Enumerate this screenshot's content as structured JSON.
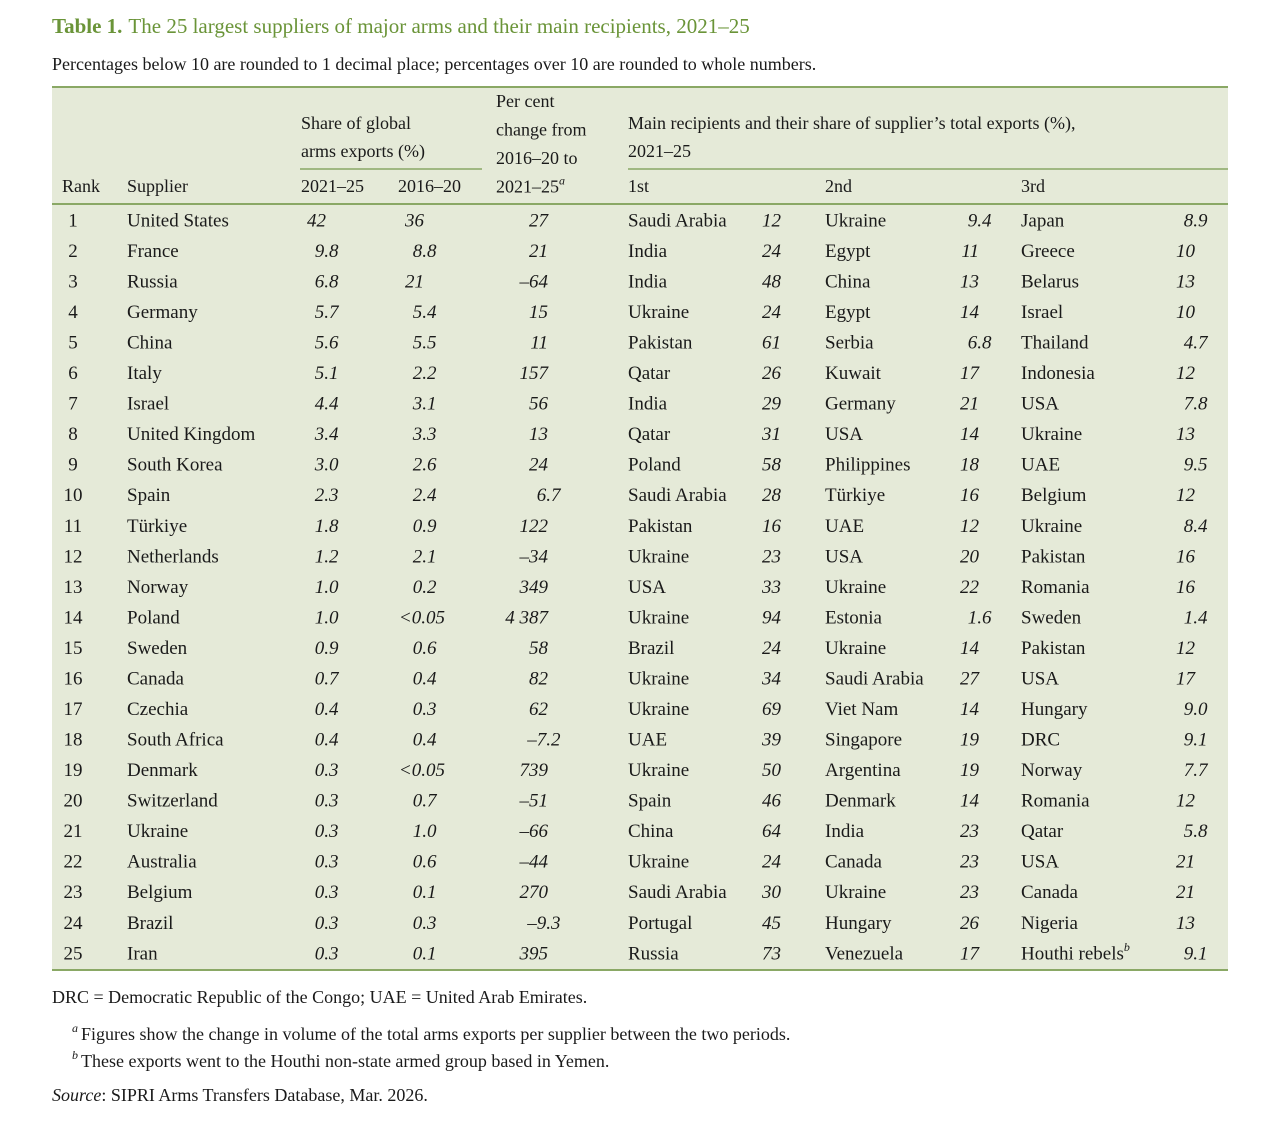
{
  "title": {
    "label": "Table 1.",
    "text": "The 25 largest suppliers of major arms and their main recipients, 2021–25"
  },
  "subtitle": "Percentages below 10 are rounded to 1 decimal place; percentages over 10 are rounded to whole numbers.",
  "header": {
    "rank": "Rank",
    "supplier": "Supplier",
    "share": {
      "lines": [
        "Share of global",
        "arms exports (%)"
      ],
      "periods": [
        "2021–25",
        "2016–20"
      ]
    },
    "change": {
      "lines": [
        "Per cent",
        "change from",
        "2016–20 to",
        "2021–25"
      ],
      "note": "a"
    },
    "recipients": {
      "lines": [
        "Main recipients and their share of supplier’s total exports (%),",
        "2021–25"
      ],
      "ranks": [
        "1st",
        "2nd",
        "3rd"
      ]
    }
  },
  "rows": [
    {
      "rank": "1",
      "supplier": "United States",
      "share_2021_25": "42",
      "share_2016_20": "36",
      "change": "27",
      "recipients": [
        {
          "name": "Saudi Arabia",
          "share": "12"
        },
        {
          "name": "Ukraine",
          "share": "9.4"
        },
        {
          "name": "Japan",
          "share": "8.9"
        }
      ]
    },
    {
      "rank": "2",
      "supplier": "France",
      "share_2021_25": "9.8",
      "share_2016_20": "8.8",
      "change": "21",
      "recipients": [
        {
          "name": "India",
          "share": "24"
        },
        {
          "name": "Egypt",
          "share": "11"
        },
        {
          "name": "Greece",
          "share": "10"
        }
      ]
    },
    {
      "rank": "3",
      "supplier": "Russia",
      "share_2021_25": "6.8",
      "share_2016_20": "21",
      "change": "–64",
      "recipients": [
        {
          "name": "India",
          "share": "48"
        },
        {
          "name": "China",
          "share": "13"
        },
        {
          "name": "Belarus",
          "share": "13"
        }
      ]
    },
    {
      "rank": "4",
      "supplier": "Germany",
      "share_2021_25": "5.7",
      "share_2016_20": "5.4",
      "change": "15",
      "recipients": [
        {
          "name": "Ukraine",
          "share": "24"
        },
        {
          "name": "Egypt",
          "share": "14"
        },
        {
          "name": "Israel",
          "share": "10"
        }
      ]
    },
    {
      "rank": "5",
      "supplier": "China",
      "share_2021_25": "5.6",
      "share_2016_20": "5.5",
      "change": "11",
      "recipients": [
        {
          "name": "Pakistan",
          "share": "61"
        },
        {
          "name": "Serbia",
          "share": "6.8"
        },
        {
          "name": "Thailand",
          "share": "4.7"
        }
      ]
    },
    {
      "rank": "6",
      "supplier": "Italy",
      "share_2021_25": "5.1",
      "share_2016_20": "2.2",
      "change": "157",
      "recipients": [
        {
          "name": "Qatar",
          "share": "26"
        },
        {
          "name": "Kuwait",
          "share": "17"
        },
        {
          "name": "Indonesia",
          "share": "12"
        }
      ]
    },
    {
      "rank": "7",
      "supplier": "Israel",
      "share_2021_25": "4.4",
      "share_2016_20": "3.1",
      "change": "56",
      "recipients": [
        {
          "name": "India",
          "share": "29"
        },
        {
          "name": "Germany",
          "share": "21"
        },
        {
          "name": "USA",
          "share": "7.8"
        }
      ]
    },
    {
      "rank": "8",
      "supplier": "United Kingdom",
      "share_2021_25": "3.4",
      "share_2016_20": "3.3",
      "change": "13",
      "recipients": [
        {
          "name": "Qatar",
          "share": "31"
        },
        {
          "name": "USA",
          "share": "14"
        },
        {
          "name": "Ukraine",
          "share": "13"
        }
      ]
    },
    {
      "rank": "9",
      "supplier": "South Korea",
      "share_2021_25": "3.0",
      "share_2016_20": "2.6",
      "change": "24",
      "recipients": [
        {
          "name": "Poland",
          "share": "58"
        },
        {
          "name": "Philippines",
          "share": "18"
        },
        {
          "name": "UAE",
          "share": "9.5"
        }
      ]
    },
    {
      "rank": "10",
      "supplier": "Spain",
      "share_2021_25": "2.3",
      "share_2016_20": "2.4",
      "change": "6.7",
      "recipients": [
        {
          "name": "Saudi Arabia",
          "share": "28"
        },
        {
          "name": "Türkiye",
          "share": "16"
        },
        {
          "name": "Belgium",
          "share": "12"
        }
      ]
    },
    {
      "rank": "11",
      "supplier": "Türkiye",
      "share_2021_25": "1.8",
      "share_2016_20": "0.9",
      "change": "122",
      "recipients": [
        {
          "name": "Pakistan",
          "share": "16"
        },
        {
          "name": "UAE",
          "share": "12"
        },
        {
          "name": "Ukraine",
          "share": "8.4"
        }
      ]
    },
    {
      "rank": "12",
      "supplier": "Netherlands",
      "share_2021_25": "1.2",
      "share_2016_20": "2.1",
      "change": "–34",
      "recipients": [
        {
          "name": "Ukraine",
          "share": "23"
        },
        {
          "name": "USA",
          "share": "20"
        },
        {
          "name": "Pakistan",
          "share": "16"
        }
      ]
    },
    {
      "rank": "13",
      "supplier": "Norway",
      "share_2021_25": "1.0",
      "share_2016_20": "0.2",
      "change": "349",
      "recipients": [
        {
          "name": "USA",
          "share": "33"
        },
        {
          "name": "Ukraine",
          "share": "22"
        },
        {
          "name": "Romania",
          "share": "16"
        }
      ]
    },
    {
      "rank": "14",
      "supplier": "Poland",
      "share_2021_25": "1.0",
      "share_2016_20": "<0.05",
      "change": "4 387",
      "recipients": [
        {
          "name": "Ukraine",
          "share": "94"
        },
        {
          "name": "Estonia",
          "share": "1.6"
        },
        {
          "name": "Sweden",
          "share": "1.4"
        }
      ]
    },
    {
      "rank": "15",
      "supplier": "Sweden",
      "share_2021_25": "0.9",
      "share_2016_20": "0.6",
      "change": "58",
      "recipients": [
        {
          "name": "Brazil",
          "share": "24"
        },
        {
          "name": "Ukraine",
          "share": "14"
        },
        {
          "name": "Pakistan",
          "share": "12"
        }
      ]
    },
    {
      "rank": "16",
      "supplier": "Canada",
      "share_2021_25": "0.7",
      "share_2016_20": "0.4",
      "change": "82",
      "recipients": [
        {
          "name": "Ukraine",
          "share": "34"
        },
        {
          "name": "Saudi Arabia",
          "share": "27"
        },
        {
          "name": "USA",
          "share": "17"
        }
      ]
    },
    {
      "rank": "17",
      "supplier": "Czechia",
      "share_2021_25": "0.4",
      "share_2016_20": "0.3",
      "change": "62",
      "recipients": [
        {
          "name": "Ukraine",
          "share": "69"
        },
        {
          "name": "Viet Nam",
          "share": "14"
        },
        {
          "name": "Hungary",
          "share": "9.0"
        }
      ]
    },
    {
      "rank": "18",
      "supplier": "South Africa",
      "share_2021_25": "0.4",
      "share_2016_20": "0.4",
      "change": "–7.2",
      "recipients": [
        {
          "name": "UAE",
          "share": "39"
        },
        {
          "name": "Singapore",
          "share": "19"
        },
        {
          "name": "DRC",
          "share": "9.1"
        }
      ]
    },
    {
      "rank": "19",
      "supplier": "Denmark",
      "share_2021_25": "0.3",
      "share_2016_20": "<0.05",
      "change": "739",
      "recipients": [
        {
          "name": "Ukraine",
          "share": "50"
        },
        {
          "name": "Argentina",
          "share": "19"
        },
        {
          "name": "Norway",
          "share": "7.7"
        }
      ]
    },
    {
      "rank": "20",
      "supplier": "Switzerland",
      "share_2021_25": "0.3",
      "share_2016_20": "0.7",
      "change": "–51",
      "recipients": [
        {
          "name": "Spain",
          "share": "46"
        },
        {
          "name": "Denmark",
          "share": "14"
        },
        {
          "name": "Romania",
          "share": "12"
        }
      ]
    },
    {
      "rank": "21",
      "supplier": "Ukraine",
      "share_2021_25": "0.3",
      "share_2016_20": "1.0",
      "change": "–66",
      "recipients": [
        {
          "name": "China",
          "share": "64"
        },
        {
          "name": "India",
          "share": "23"
        },
        {
          "name": "Qatar",
          "share": "5.8"
        }
      ]
    },
    {
      "rank": "22",
      "supplier": "Australia",
      "share_2021_25": "0.3",
      "share_2016_20": "0.6",
      "change": "–44",
      "recipients": [
        {
          "name": "Ukraine",
          "share": "24"
        },
        {
          "name": "Canada",
          "share": "23"
        },
        {
          "name": "USA",
          "share": "21"
        }
      ]
    },
    {
      "rank": "23",
      "supplier": "Belgium",
      "share_2021_25": "0.3",
      "share_2016_20": "0.1",
      "change": "270",
      "recipients": [
        {
          "name": "Saudi Arabia",
          "share": "30"
        },
        {
          "name": "Ukraine",
          "share": "23"
        },
        {
          "name": "Canada",
          "share": "21"
        }
      ]
    },
    {
      "rank": "24",
      "supplier": "Brazil",
      "share_2021_25": "0.3",
      "share_2016_20": "0.3",
      "change": "–9.3",
      "recipients": [
        {
          "name": "Portugal",
          "share": "45"
        },
        {
          "name": "Hungary",
          "share": "26"
        },
        {
          "name": "Nigeria",
          "share": "13"
        }
      ]
    },
    {
      "rank": "25",
      "supplier": "Iran",
      "share_2021_25": "0.3",
      "share_2016_20": "0.1",
      "change": "395",
      "recipients": [
        {
          "name": "Russia",
          "share": "73"
        },
        {
          "name": "Venezuela",
          "share": "17"
        },
        {
          "name": "Houthi rebels",
          "share": "9.1",
          "note": "b"
        }
      ]
    }
  ],
  "footer": {
    "abbreviations": "DRC = Democratic Republic of the Congo; UAE = United Arab Emirates.",
    "notes": [
      {
        "marker": "a",
        "text": "Figures show the change in volume of the total arms exports per supplier between the two periods."
      },
      {
        "marker": "b",
        "text": "These exports went to the Houthi non-state armed group based in Yemen."
      }
    ],
    "source": {
      "label": "Source",
      "text": ": SIPRI Arms Transfers Database, Mar. 2026."
    }
  }
}
